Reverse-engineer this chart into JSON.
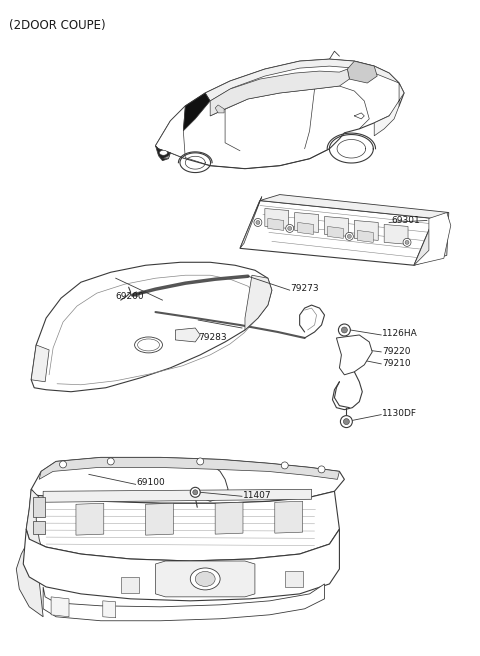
{
  "title": "(2DOOR COUPE)",
  "bg": "#ffffff",
  "fig_w": 4.8,
  "fig_h": 6.56,
  "dpi": 100,
  "line_color": "#3a3a3a",
  "label_color": "#1a1a1a",
  "label_fs": 6.5,
  "title_fs": 8.5,
  "lw": 0.8
}
